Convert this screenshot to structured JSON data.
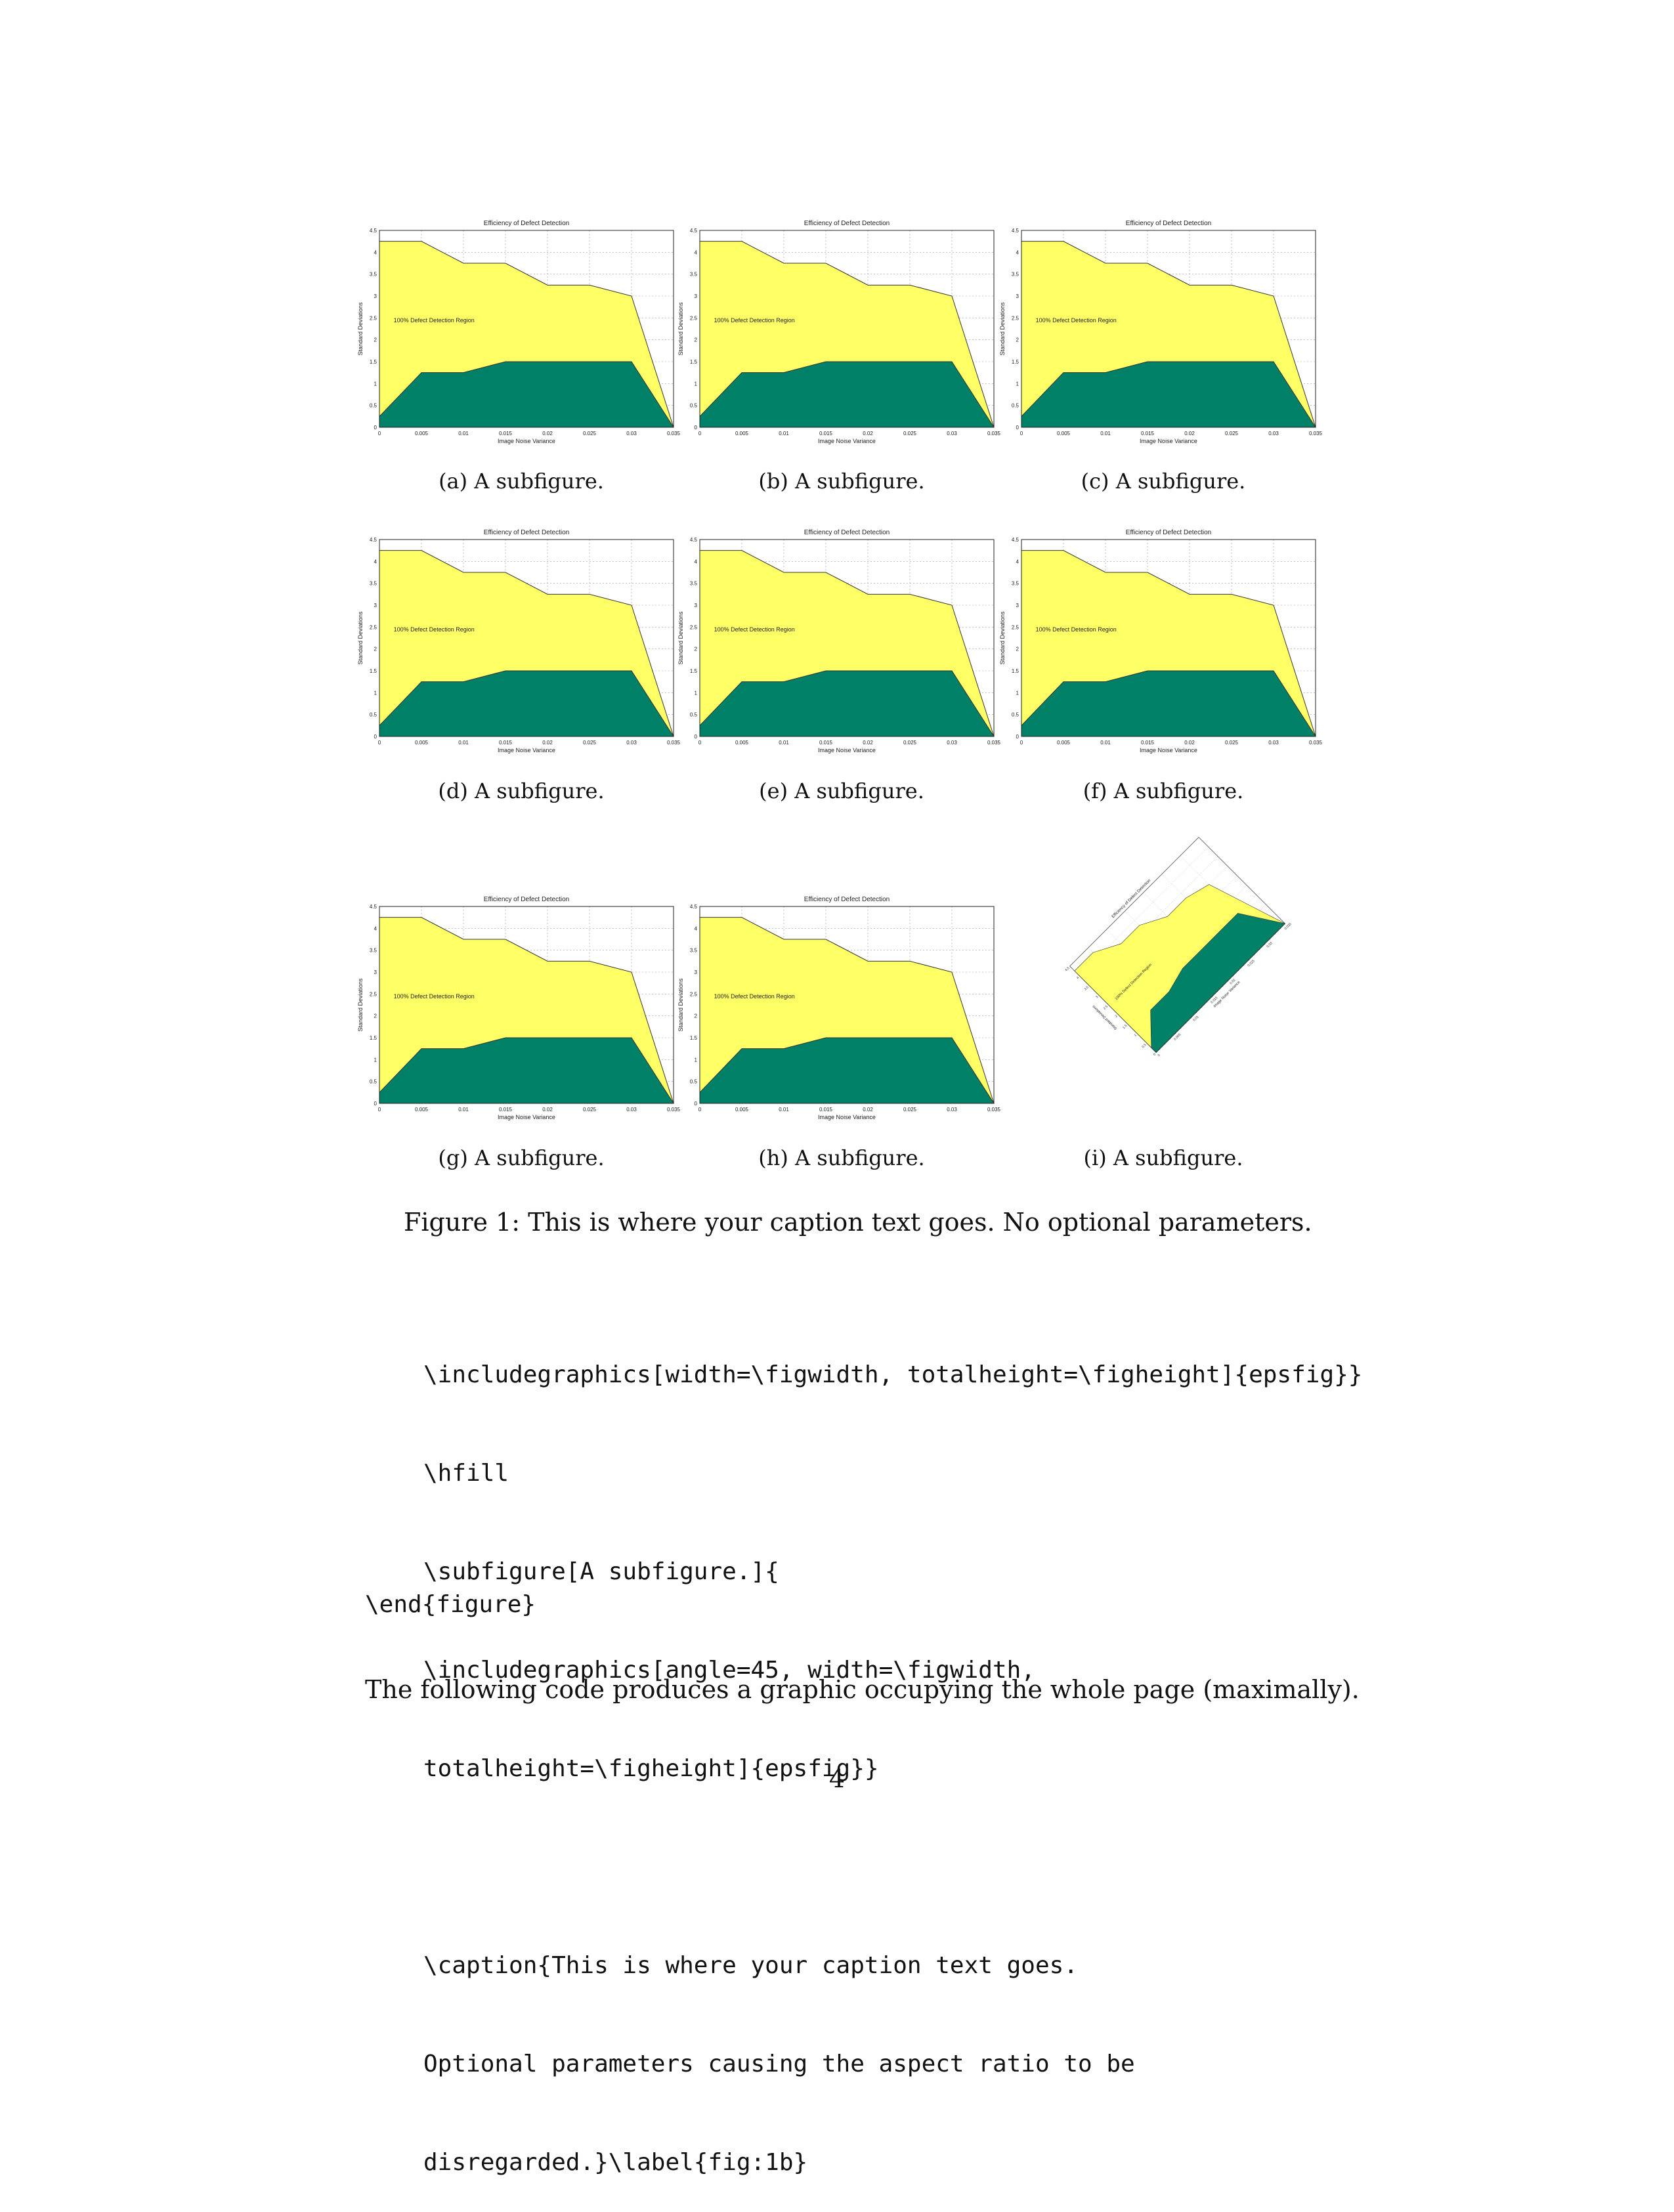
{
  "charts": {
    "a": {
      "caption": "(a) A subfigure."
    },
    "b": {
      "caption": "(b) A subfigure."
    },
    "c": {
      "caption": "(c) A subfigure."
    },
    "d": {
      "caption": "(d) A subfigure."
    },
    "e": {
      "caption": "(e) A subfigure."
    },
    "f": {
      "caption": "(f) A subfigure."
    },
    "g": {
      "caption": "(g) A subfigure."
    },
    "h": {
      "caption": "(h) A subfigure."
    },
    "i": {
      "caption": "(i) A subfigure."
    }
  },
  "chart_data": {
    "type": "area",
    "title": "Efficiency of Defect Detection",
    "xlabel": "Image Noise Variance",
    "ylabel": "Standard Deviations",
    "annotation": "100% Defect Detection Region",
    "xlim": [
      0,
      0.035
    ],
    "ylim": [
      0,
      4.5
    ],
    "xticks": [
      "0",
      "0.005",
      "0.01",
      "0.015",
      "0.02",
      "0.025",
      "0.03",
      "0.035"
    ],
    "yticks": [
      "0",
      "0.5",
      "1",
      "1.5",
      "2",
      "2.5",
      "3",
      "3.5",
      "4",
      "4.5"
    ],
    "grid": true,
    "series": [
      {
        "x": [
          0,
          0.005,
          0.01,
          0.015,
          0.02,
          0.025,
          0.03,
          0.035
        ],
        "values": [
          4.25,
          4.25,
          3.75,
          3.75,
          3.25,
          3.25,
          3.0,
          0.0
        ],
        "color": "#FFFF66"
      },
      {
        "x": [
          0,
          0.005,
          0.01,
          0.015,
          0.02,
          0.025,
          0.03,
          0.035
        ],
        "values": [
          0.25,
          1.25,
          1.25,
          1.5,
          1.5,
          1.5,
          1.5,
          0.0
        ],
        "color": "#008066"
      }
    ]
  },
  "figure_caption": "Figure 1: This is where your caption text goes. No optional parameters.",
  "code_lines": [
    "\\includegraphics[width=\\figwidth, totalheight=\\figheight]{epsfig}}",
    "\\hfill",
    "\\subfigure[A subfigure.]{",
    "\\includegraphics[angle=45, width=\\figwidth,",
    "totalheight=\\figheight]{epsfig}}",
    "",
    "\\caption{This is where your caption text goes.",
    "Optional parameters causing the aspect ratio to be",
    "disregarded.}\\label{fig:1b}"
  ],
  "code_end": "\\end{figure}",
  "body_text": "The following code produces a graphic occupying the whole page (maximally).",
  "page_number": "4"
}
